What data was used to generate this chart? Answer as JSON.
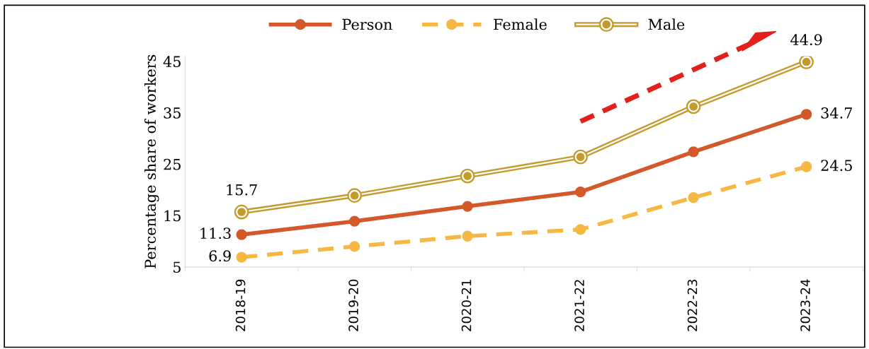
{
  "chart_data": {
    "type": "line",
    "ylabel": "Percentage share of workers",
    "categories": [
      "2018-19",
      "2019-20",
      "2020-21",
      "2021-22",
      "2022-23",
      "2023-24"
    ],
    "series": [
      {
        "name": "Person",
        "color": "#d4582a",
        "values": [
          11.3,
          13.9,
          16.8,
          19.6,
          27.4,
          34.7
        ],
        "value_labels": [
          "11.3",
          null,
          null,
          null,
          null,
          "34.7"
        ],
        "line_style": "solid"
      },
      {
        "name": "Female",
        "color": "#f6b743",
        "values": [
          6.9,
          9.0,
          11.0,
          12.3,
          18.5,
          24.5
        ],
        "value_labels": [
          "6.9",
          null,
          null,
          null,
          null,
          "24.5"
        ],
        "line_style": "dashed"
      },
      {
        "name": "Male",
        "color": "#c49a2c",
        "values": [
          15.7,
          18.9,
          22.7,
          26.4,
          36.2,
          44.9
        ],
        "value_labels": [
          "15.7",
          null,
          null,
          null,
          null,
          "44.9"
        ],
        "line_style": "solid"
      }
    ],
    "ylim": [
      5,
      46
    ],
    "yticks": [
      5,
      15,
      25,
      35,
      45
    ],
    "grid": false,
    "legend": "top",
    "marker": "circle"
  }
}
